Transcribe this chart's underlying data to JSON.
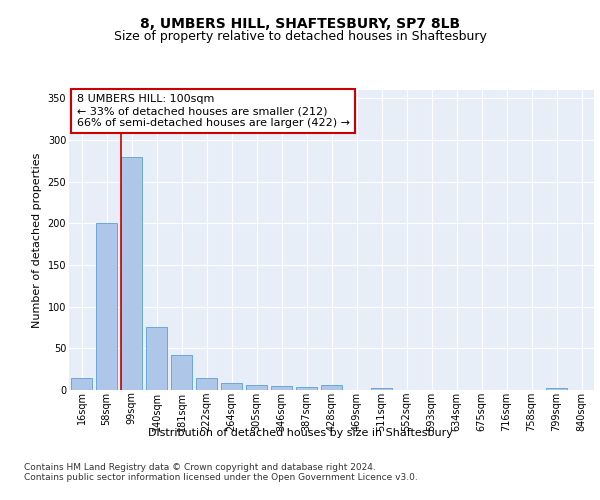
{
  "title": "8, UMBERS HILL, SHAFTESBURY, SP7 8LB",
  "subtitle": "Size of property relative to detached houses in Shaftesbury",
  "xlabel": "Distribution of detached houses by size in Shaftesbury",
  "ylabel": "Number of detached properties",
  "bar_labels": [
    "16sqm",
    "58sqm",
    "99sqm",
    "140sqm",
    "181sqm",
    "222sqm",
    "264sqm",
    "305sqm",
    "346sqm",
    "387sqm",
    "428sqm",
    "469sqm",
    "511sqm",
    "552sqm",
    "593sqm",
    "634sqm",
    "675sqm",
    "716sqm",
    "758sqm",
    "799sqm",
    "840sqm"
  ],
  "bar_values": [
    14,
    200,
    280,
    76,
    42,
    14,
    9,
    6,
    5,
    4,
    6,
    0,
    3,
    0,
    0,
    0,
    0,
    0,
    0,
    3,
    0
  ],
  "bar_color": "#aec6e8",
  "bar_edge_color": "#5a9fd4",
  "highlight_bar_index": 2,
  "highlight_line_color": "#cc0000",
  "annotation_text": "8 UMBERS HILL: 100sqm\n← 33% of detached houses are smaller (212)\n66% of semi-detached houses are larger (422) →",
  "annotation_box_color": "#ffffff",
  "annotation_box_edge_color": "#cc0000",
  "ylim": [
    0,
    360
  ],
  "yticks": [
    0,
    50,
    100,
    150,
    200,
    250,
    300,
    350
  ],
  "plot_bg_color": "#e8eef8",
  "fig_bg_color": "#ffffff",
  "footer_text": "Contains HM Land Registry data © Crown copyright and database right 2024.\nContains public sector information licensed under the Open Government Licence v3.0.",
  "title_fontsize": 10,
  "subtitle_fontsize": 9,
  "axis_label_fontsize": 8,
  "tick_fontsize": 7,
  "annotation_fontsize": 8,
  "footer_fontsize": 6.5
}
